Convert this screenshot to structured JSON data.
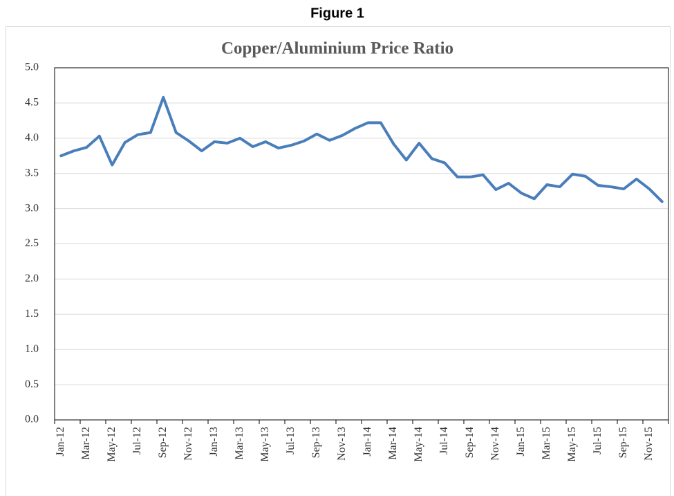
{
  "chart_data": {
    "type": "line",
    "figure_label": "Figure 1",
    "title": "Copper/Aluminium Price Ratio",
    "categories": [
      "Jan-12",
      null,
      "Mar-12",
      null,
      "May-12",
      null,
      "Jul-12",
      null,
      "Sep-12",
      null,
      "Nov-12",
      null,
      "Jan-13",
      null,
      "Mar-13",
      null,
      "May-13",
      null,
      "Jul-13",
      null,
      "Sep-13",
      null,
      "Nov-13",
      null,
      "Jan-14",
      null,
      "Mar-14",
      null,
      "May-14",
      null,
      "Jul-14",
      null,
      "Sep-14",
      null,
      "Nov-14",
      null,
      "Jan-15",
      null,
      "Mar-15",
      null,
      "May-15",
      null,
      "Jul-15",
      null,
      "Sep-15",
      null,
      "Nov-15",
      null
    ],
    "series": [
      {
        "name": "Copper/Aluminium Price Ratio",
        "color": "#4a7ebb",
        "values": [
          3.75,
          3.82,
          3.87,
          4.03,
          3.62,
          3.94,
          4.05,
          4.08,
          4.58,
          4.08,
          3.96,
          3.82,
          3.95,
          3.93,
          4.0,
          3.88,
          3.95,
          3.86,
          3.9,
          3.96,
          4.06,
          3.97,
          4.04,
          4.14,
          4.22,
          4.22,
          3.92,
          3.69,
          3.93,
          3.71,
          3.65,
          3.45,
          3.45,
          3.48,
          3.27,
          3.36,
          3.22,
          3.14,
          3.34,
          3.31,
          3.49,
          3.46,
          3.33,
          3.31,
          3.28,
          3.42,
          3.28,
          3.1
        ]
      }
    ],
    "ylim": [
      0,
      5
    ],
    "yticks": [
      {
        "value": 0,
        "label": "0.0"
      },
      0.5,
      {
        "value": 1,
        "label": "1.0"
      },
      1.5,
      {
        "value": 2,
        "label": "2.0"
      },
      2.5,
      {
        "value": 3,
        "label": "3.0"
      },
      3.5,
      {
        "value": 4,
        "label": "4.0"
      },
      4.5,
      {
        "value": 5,
        "label": "5.0"
      }
    ],
    "grid": true,
    "legend": false
  }
}
